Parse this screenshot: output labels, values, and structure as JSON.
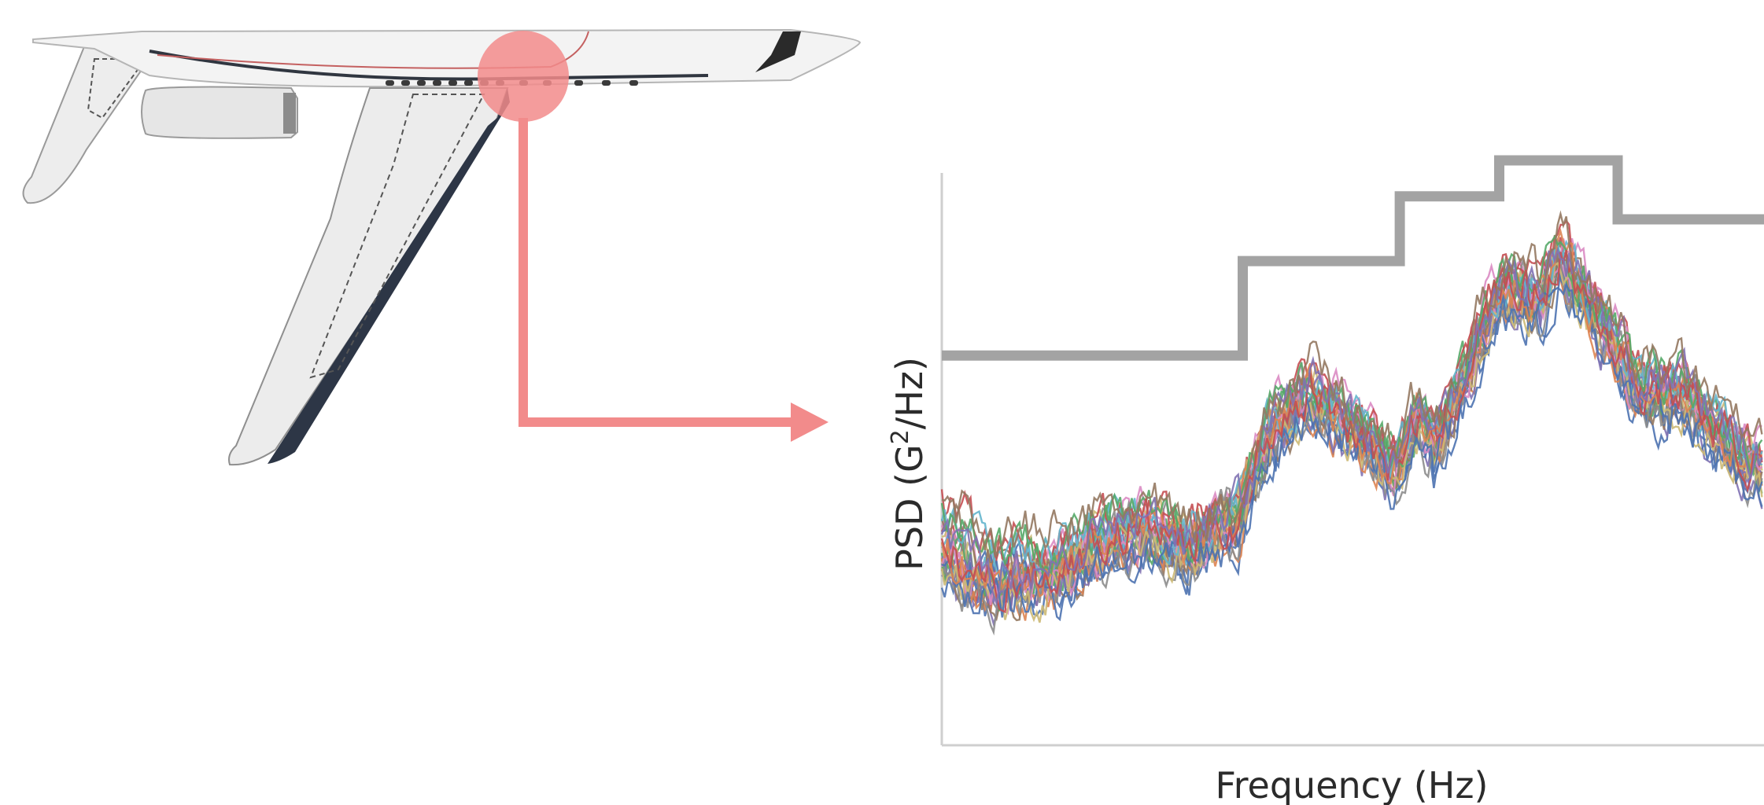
{
  "chart_data": {
    "type": "line",
    "title": "",
    "xlabel": "Frequency (Hz)",
    "ylabel_parts": [
      "PSD (G",
      "2",
      "/Hz)"
    ],
    "xlim": [
      0,
      100
    ],
    "ylim": [
      0,
      100
    ],
    "grid": false,
    "legend": "none",
    "envelope": {
      "color": "#a3a3a3",
      "x": [
        0,
        36.6,
        36.6,
        55.7,
        55.7,
        67.8,
        67.8,
        82.2,
        82.2,
        100
      ],
      "y": [
        68.1,
        68.1,
        84.6,
        84.6,
        95.9,
        95.9,
        102.2,
        102.2,
        91.9,
        91.9
      ]
    },
    "measurement_trace_count": 26,
    "measurement_profile": {
      "x": [
        0,
        6,
        14,
        20,
        25,
        30,
        36,
        40,
        45,
        50,
        55,
        58,
        60,
        65,
        68,
        73,
        75,
        78,
        81,
        85,
        90,
        95,
        100
      ],
      "y": [
        33,
        28,
        30,
        36,
        38,
        35,
        40,
        55,
        62,
        56,
        48,
        58,
        52,
        70,
        80,
        78,
        86,
        79,
        72,
        62,
        62,
        54,
        48
      ]
    },
    "series_colors": [
      "#4c72b0",
      "#dd8452",
      "#55a868",
      "#c44e52",
      "#8172b3",
      "#937860",
      "#da8bc3",
      "#8c8c8c",
      "#ccb974",
      "#64b5cd"
    ]
  },
  "illustration": {
    "subject": "aircraft-wing",
    "highlight_color": "#f28b8b"
  }
}
